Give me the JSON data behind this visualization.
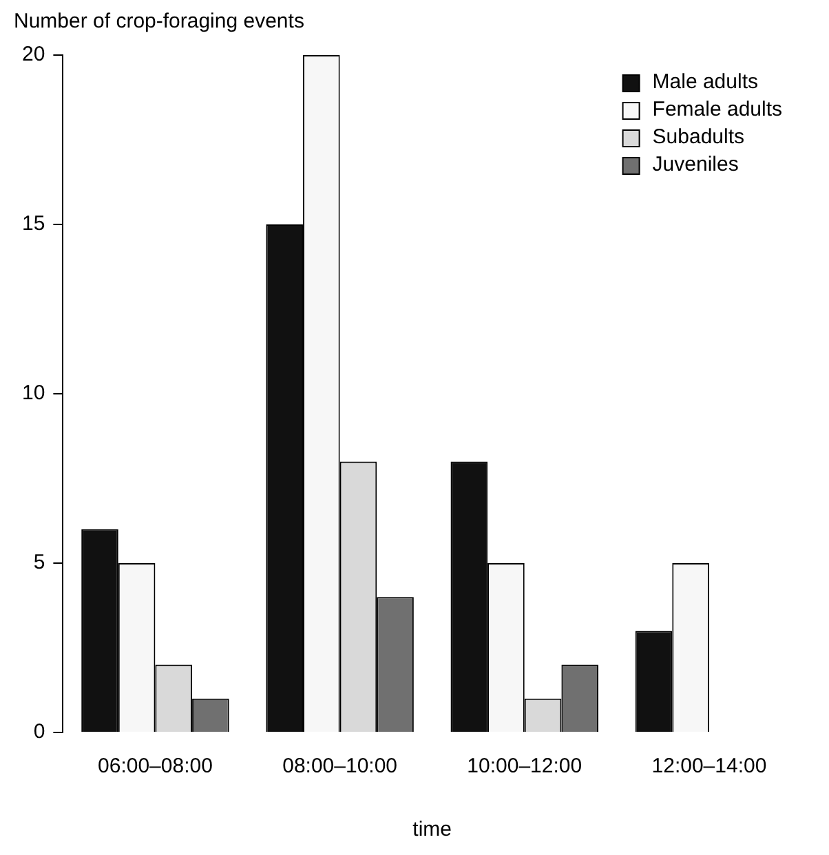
{
  "chart_data": {
    "type": "bar",
    "ylabel": "Number of crop-foraging events",
    "xlabel": "time",
    "categories": [
      "06:00–08:00",
      "08:00–10:00",
      "10:00–12:00",
      "12:00–14:00"
    ],
    "series": [
      {
        "name": "Male adults",
        "color": "#111111",
        "values": [
          6,
          15,
          8,
          3
        ]
      },
      {
        "name": "Female adults",
        "color": "#f7f7f7",
        "values": [
          5,
          20,
          5,
          5
        ]
      },
      {
        "name": "Subadults",
        "color": "#d9d9d9",
        "values": [
          2,
          8,
          1,
          0
        ]
      },
      {
        "name": "Juveniles",
        "color": "#707070",
        "values": [
          1,
          4,
          2,
          0
        ]
      }
    ],
    "ylim": [
      0,
      20
    ],
    "yticks": [
      0,
      5,
      10,
      15,
      20
    ],
    "grid": false,
    "legend": "top right"
  }
}
